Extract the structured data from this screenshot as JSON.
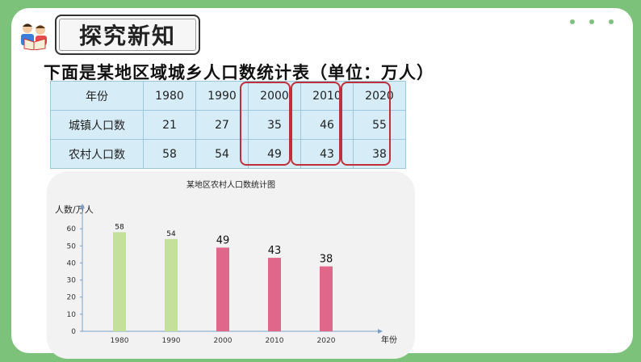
{
  "header": {
    "title": "探究新知",
    "logo_icon": "reading-children-icon"
  },
  "question": "下面是某地区域城乡人口数统计表（单位：万人）",
  "table": {
    "header_label": "年份",
    "years": [
      "1980",
      "1990",
      "2000",
      "2010",
      "2020"
    ],
    "rows": [
      {
        "label": "城镇人口数",
        "values": [
          "21",
          "27",
          "35",
          "46",
          "55"
        ]
      },
      {
        "label": "农村人口数",
        "values": [
          "58",
          "54",
          "49",
          "43",
          "38"
        ]
      }
    ]
  },
  "chart_data": {
    "type": "bar",
    "title": "某地区农村人口数统计图",
    "ylabel": "人数/万人",
    "xlabel": "年份",
    "categories": [
      "1980",
      "1990",
      "2000",
      "2010",
      "2020"
    ],
    "values": [
      58,
      54,
      49,
      43,
      38
    ],
    "value_labels": [
      "58",
      "54",
      "49",
      "43",
      "38"
    ],
    "yticks": [
      "0",
      "10",
      "20",
      "30",
      "40",
      "50",
      "60"
    ],
    "ylim": [
      0,
      70
    ],
    "bar_colors": [
      "#c5e09a",
      "#c5e09a",
      "#e0668a",
      "#e0668a",
      "#e0668a"
    ],
    "grid": false
  },
  "colors": {
    "background": "#7cc27a",
    "table_fill": "#d6ecf7",
    "highlight": "#c0303a"
  }
}
